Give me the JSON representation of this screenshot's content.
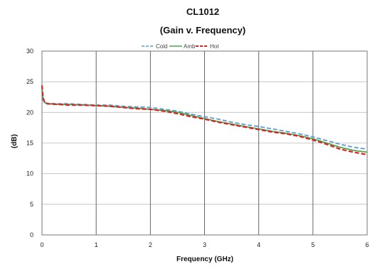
{
  "chart_data": {
    "type": "line",
    "title": "CL1012",
    "subtitle": "(Gain v. Frequency)",
    "xlabel": "Frequency (GHz)",
    "ylabel": "(dB)",
    "xlim": [
      0,
      6
    ],
    "ylim": [
      0,
      30
    ],
    "xticks": [
      "0",
      "1",
      "2",
      "3",
      "4",
      "5",
      "6"
    ],
    "yticks": [
      "0",
      "5",
      "10",
      "15",
      "20",
      "25",
      "30"
    ],
    "grid": true,
    "legend_position": "top-center",
    "series": [
      {
        "name": "Cold",
        "color": "#5b9bd5",
        "dash": "dashed",
        "x": [
          0,
          0.02,
          0.05,
          0.1,
          0.3,
          0.5,
          0.75,
          1.0,
          1.25,
          1.5,
          1.75,
          2.0,
          2.25,
          2.5,
          2.75,
          3.0,
          3.25,
          3.5,
          3.75,
          4.0,
          4.25,
          4.5,
          4.75,
          5.0,
          5.25,
          5.5,
          5.75,
          6.0
        ],
        "y": [
          23.6,
          22.0,
          21.6,
          21.5,
          21.4,
          21.4,
          21.3,
          21.2,
          21.2,
          21.0,
          20.9,
          20.8,
          20.5,
          20.2,
          19.7,
          19.3,
          18.9,
          18.4,
          18.0,
          17.7,
          17.3,
          16.9,
          16.5,
          16.0,
          15.4,
          14.8,
          14.3,
          14.0
        ]
      },
      {
        "name": "Amb",
        "color": "#4ca64c",
        "dash": "solid",
        "x": [
          0,
          0.02,
          0.05,
          0.1,
          0.3,
          0.5,
          0.75,
          1.0,
          1.25,
          1.5,
          1.75,
          2.0,
          2.25,
          2.5,
          2.75,
          3.0,
          3.25,
          3.5,
          3.75,
          4.0,
          4.25,
          4.5,
          4.75,
          5.0,
          5.25,
          5.5,
          5.75,
          6.0
        ],
        "y": [
          24.0,
          22.2,
          21.6,
          21.4,
          21.3,
          21.3,
          21.2,
          21.1,
          21.0,
          20.8,
          20.7,
          20.5,
          20.3,
          20.0,
          19.5,
          19.0,
          18.5,
          18.1,
          17.7,
          17.3,
          16.9,
          16.6,
          16.2,
          15.7,
          15.0,
          14.3,
          13.8,
          13.5
        ]
      },
      {
        "name": "Hot",
        "color": "#e02020",
        "dash": "dashed",
        "x": [
          0,
          0.02,
          0.05,
          0.1,
          0.3,
          0.5,
          0.75,
          1.0,
          1.25,
          1.5,
          1.75,
          2.0,
          2.25,
          2.5,
          2.75,
          3.0,
          3.25,
          3.5,
          3.75,
          4.0,
          4.25,
          4.5,
          4.75,
          5.0,
          5.25,
          5.5,
          5.75,
          6.0
        ],
        "y": [
          24.4,
          22.4,
          21.6,
          21.4,
          21.3,
          21.2,
          21.2,
          21.1,
          21.0,
          20.8,
          20.6,
          20.5,
          20.2,
          19.8,
          19.3,
          18.9,
          18.4,
          18.0,
          17.6,
          17.2,
          16.8,
          16.5,
          16.1,
          15.5,
          14.8,
          14.0,
          13.5,
          13.1
        ]
      }
    ]
  }
}
